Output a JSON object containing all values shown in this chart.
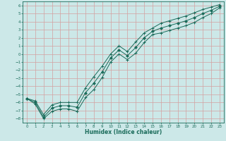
{
  "xlabel": "Humidex (Indice chaleur)",
  "bg_color": "#cce8e8",
  "grid_color": "#d4a0a0",
  "line_color": "#1a6b5a",
  "xlim": [
    -0.5,
    23.5
  ],
  "ylim": [
    -8.5,
    6.5
  ],
  "xticks": [
    0,
    1,
    2,
    3,
    4,
    5,
    6,
    7,
    8,
    9,
    10,
    11,
    12,
    13,
    14,
    15,
    16,
    17,
    18,
    19,
    20,
    21,
    22,
    23
  ],
  "yticks": [
    -8,
    -7,
    -6,
    -5,
    -4,
    -3,
    -2,
    -1,
    0,
    1,
    2,
    3,
    4,
    5,
    6
  ],
  "main_x": [
    0,
    1,
    2,
    3,
    4,
    5,
    6,
    7,
    8,
    9,
    10,
    11,
    12,
    13,
    14,
    15,
    16,
    17,
    18,
    19,
    20,
    21,
    22,
    23
  ],
  "main_y": [
    -5.5,
    -6.0,
    -7.8,
    -6.7,
    -6.4,
    -6.4,
    -6.6,
    -4.8,
    -3.6,
    -2.2,
    -0.5,
    0.5,
    -0.2,
    0.8,
    2.0,
    2.8,
    3.2,
    3.5,
    3.8,
    4.1,
    4.5,
    5.0,
    5.4,
    5.9
  ],
  "upper_x": [
    0,
    1,
    2,
    3,
    4,
    5,
    6,
    7,
    8,
    9,
    10,
    11,
    12,
    13,
    14,
    15,
    16,
    17,
    18,
    19,
    20,
    21,
    22,
    23
  ],
  "upper_y": [
    -5.5,
    -5.8,
    -7.5,
    -6.3,
    -6.0,
    -6.0,
    -6.0,
    -4.2,
    -2.8,
    -1.5,
    0.0,
    1.0,
    0.3,
    1.5,
    2.6,
    3.2,
    3.8,
    4.1,
    4.4,
    4.7,
    5.1,
    5.5,
    5.8,
    6.1
  ],
  "lower_x": [
    0,
    1,
    2,
    3,
    4,
    5,
    6,
    7,
    8,
    9,
    10,
    11,
    12,
    13,
    14,
    15,
    16,
    17,
    18,
    19,
    20,
    21,
    22,
    23
  ],
  "lower_y": [
    -5.5,
    -6.2,
    -8.0,
    -7.1,
    -6.8,
    -6.8,
    -7.1,
    -5.4,
    -4.4,
    -2.9,
    -1.0,
    -0.0,
    -0.7,
    0.1,
    1.4,
    2.4,
    2.6,
    2.9,
    3.2,
    3.5,
    3.9,
    4.5,
    5.0,
    5.7
  ]
}
